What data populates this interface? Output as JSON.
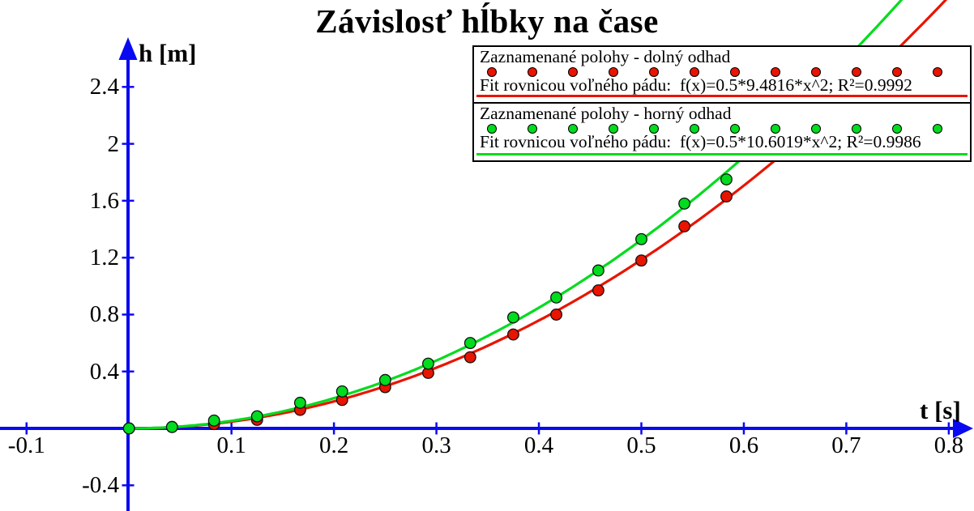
{
  "title": "Závislosť hĺbky na čase",
  "axes": {
    "x_label": "t [s]",
    "y_label": "h [m]",
    "x_ticks": [
      -0.1,
      0.1,
      0.2,
      0.3,
      0.4,
      0.5,
      0.6,
      0.7,
      0.8
    ],
    "y_ticks": [
      -0.4,
      0.4,
      0.8,
      1.2,
      1.6,
      2,
      2.4
    ],
    "axis_color": "#0a0af2"
  },
  "legend": {
    "marker_dots_per_row": 12,
    "entries": [
      {
        "name": "Zaznamenané polohy - dolný odhad",
        "fit_label": "Fit rovnicou voľného pádu:  f(x)=0.5*9.4816*x^2; R²=0.9992",
        "color": "#e81400"
      },
      {
        "name": "Zaznamenané polohy - horný odhad",
        "fit_label": "Fit rovnicou voľného pádu:  f(x)=0.5*10.6019*x^2; R²=0.9986",
        "color": "#00dc1e"
      }
    ]
  },
  "chart_data": {
    "type": "scatter",
    "title": "Závislosť hĺbky na čase",
    "xlabel": "t [s]",
    "ylabel": "h [m]",
    "xlim": [
      -0.126,
      0.825
    ],
    "ylim": [
      -0.58,
      2.74
    ],
    "grid": false,
    "legend_position": "top-right",
    "x": [
      0.0,
      0.042,
      0.083,
      0.125,
      0.167,
      0.208,
      0.25,
      0.292,
      0.333,
      0.375,
      0.417,
      0.458,
      0.5,
      0.542,
      0.583
    ],
    "series": [
      {
        "name": "Zaznamenané polohy - dolný odhad",
        "color": "#e81400",
        "marker": "circle",
        "values": [
          0.0,
          0.01,
          0.03,
          0.06,
          0.13,
          0.2,
          0.29,
          0.39,
          0.5,
          0.66,
          0.8,
          0.97,
          1.18,
          1.42,
          1.63
        ],
        "fit": {
          "equation": "f(x)=0.5*9.4816*x^2",
          "g": 9.4816,
          "r2": 0.9992
        }
      },
      {
        "name": "Zaznamenané polohy - horný odhad",
        "color": "#00dc1e",
        "marker": "circle",
        "values": [
          0.0,
          0.01,
          0.055,
          0.085,
          0.18,
          0.26,
          0.34,
          0.455,
          0.6,
          0.78,
          0.92,
          1.11,
          1.33,
          1.58,
          1.75
        ],
        "fit": {
          "equation": "f(x)=0.5*10.6019*x^2",
          "g": 10.6019,
          "r2": 0.9986
        }
      }
    ]
  }
}
